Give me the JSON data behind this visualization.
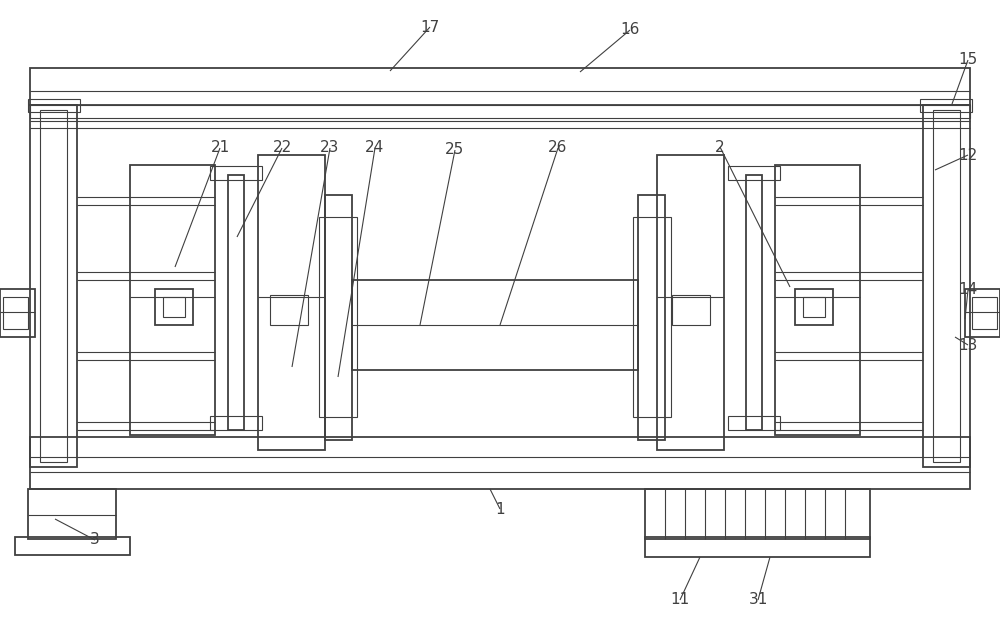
{
  "bg_color": "#ffffff",
  "lc": "#404040",
  "lw": 1.3,
  "tlw": 0.8,
  "label_fs": 11
}
